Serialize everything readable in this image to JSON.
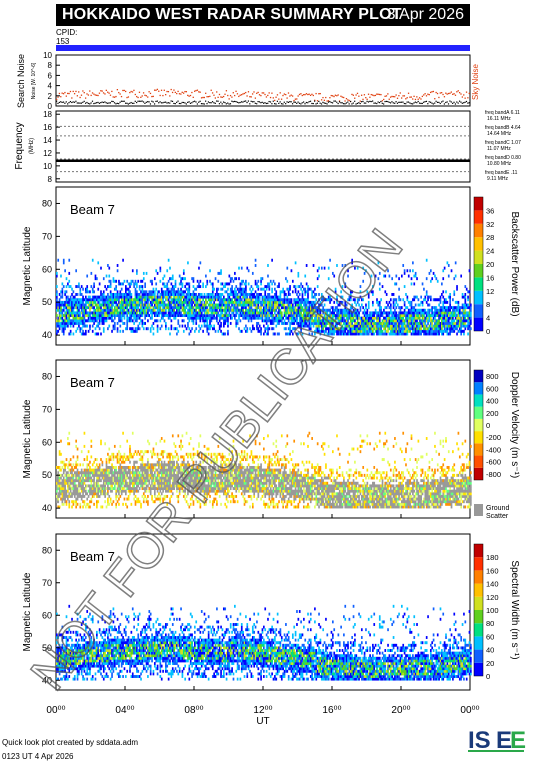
{
  "header": {
    "title": "HOKKAIDO WEST RADAR SUMMARY PLOT",
    "date": "3 Apr 2026",
    "cpid_label": "CPID:",
    "cpid_value": "153"
  },
  "noise_panel": {
    "ylabel": "Search Noise",
    "sublabel": "Noise [W. 10^-6]",
    "ticks": [
      "0",
      "2",
      "4",
      "6",
      "8",
      "10"
    ],
    "legend": "Sky Noise",
    "legend_color": "#e04010"
  },
  "freq_panel": {
    "ylabel": "Frequency",
    "unit": "(MHz)",
    "ticks": [
      "8",
      "10",
      "12",
      "14",
      "16",
      "18"
    ],
    "bands": [
      "freq bandA 16.11 MHz",
      "freq bandB 14.64 MHz",
      "freq bandC 11.07 MHz",
      "freq bandD 10.80 MHz",
      "freq bandE 9.11 MHz"
    ]
  },
  "panels": [
    {
      "beam": "Beam  7",
      "ylabel": "Magnetic Latitude",
      "scale_label": "Backscatter Power (dB)",
      "scale_ticks": [
        "0",
        "4",
        "8",
        "12",
        "16",
        "20",
        "24",
        "28",
        "32",
        "36"
      ],
      "colors": [
        "#0000ff",
        "#1060ff",
        "#00c0ff",
        "#00e080",
        "#60d020",
        "#d0e020",
        "#ffc000",
        "#ff8000",
        "#ff3000",
        "#c00000"
      ]
    },
    {
      "beam": "Beam  7",
      "ylabel": "Magnetic Latitude",
      "scale_label": "Doppler Velocity (m s⁻¹)",
      "scale_ticks": [
        "-800",
        "-600",
        "-400",
        "-200",
        "0",
        "200",
        "400",
        "600",
        "800"
      ],
      "ground_label": "Ground Scatter",
      "colors": [
        "#c00000",
        "#ff5000",
        "#ff9000",
        "#ffe000",
        "#e0ff60",
        "#60ff80",
        "#00e0c0",
        "#0080ff",
        "#0000c0"
      ]
    },
    {
      "beam": "Beam  7",
      "ylabel": "Magnetic Latitude",
      "scale_label": "Spectral Width (m s⁻¹)",
      "scale_ticks": [
        "0",
        "20",
        "40",
        "60",
        "80",
        "100",
        "120",
        "140",
        "160",
        "180"
      ],
      "colors": [
        "#0000ff",
        "#1060ff",
        "#00c0ff",
        "#00e080",
        "#60d020",
        "#d0e020",
        "#ffc000",
        "#ff8000",
        "#ff3000",
        "#c00000"
      ]
    }
  ],
  "lat_ticks": [
    "40",
    "50",
    "60",
    "70",
    "80"
  ],
  "time_ticks": [
    "00⁰⁰",
    "04⁰⁰",
    "08⁰⁰",
    "12⁰⁰",
    "16⁰⁰",
    "20⁰⁰",
    "00⁰⁰"
  ],
  "xlabel": "UT",
  "watermark": "NOT FOR PUBLICATION",
  "footer": {
    "credit": "Quick look plot created by sddata.adm",
    "stamp": "0123 UT  4 Apr 2026"
  },
  "logo": {
    "text": "ISEE"
  },
  "chart_data": [
    {
      "type": "line",
      "title": "Search Noise",
      "xlabel": "UT",
      "ylabel": "Search Noise",
      "ylim": [
        0,
        10
      ],
      "series": [
        {
          "name": "Sky Noise",
          "values_approx": "about 1 to 3 throughout the day"
        }
      ]
    },
    {
      "type": "line",
      "title": "Frequency",
      "ylabel": "Frequency (MHz)",
      "ylim": [
        8,
        18
      ],
      "series": [
        {
          "values_approx": "steady about 10.8 all day"
        }
      ]
    },
    {
      "type": "heatmap",
      "title": "Beam 7 Backscatter Power",
      "xlabel": "UT",
      "ylabel": "Magnetic Latitude",
      "xlim": [
        0,
        24
      ],
      "ylim": [
        37,
        85
      ],
      "colorbar": {
        "label": "Backscatter Power (dB)",
        "range": [
          0,
          36
        ]
      }
    },
    {
      "type": "heatmap",
      "title": "Beam 7 Doppler Velocity",
      "xlabel": "UT",
      "ylabel": "Magnetic Latitude",
      "xlim": [
        0,
        24
      ],
      "ylim": [
        37,
        85
      ],
      "colorbar": {
        "label": "Doppler Velocity (m s-1)",
        "range": [
          -800,
          800
        ]
      }
    },
    {
      "type": "heatmap",
      "title": "Beam 7 Spectral Width",
      "xlabel": "UT",
      "ylabel": "Magnetic Latitude",
      "xlim": [
        0,
        24
      ],
      "ylim": [
        37,
        85
      ],
      "colorbar": {
        "label": "Spectral Width (m s-1)",
        "range": [
          0,
          180
        ]
      }
    }
  ]
}
